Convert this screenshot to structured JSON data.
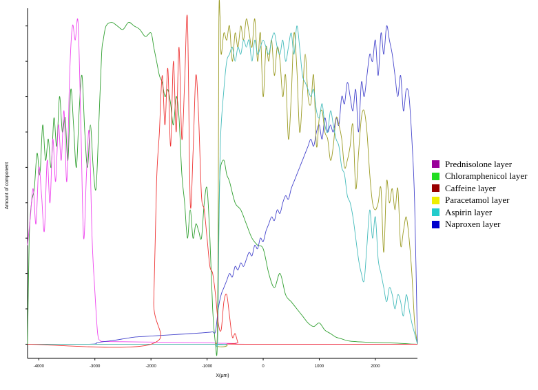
{
  "chart_data": {
    "type": "line",
    "title": "",
    "xlabel": "X(µm)",
    "ylabel": "Amount of component",
    "xlim": [
      -4200,
      2750
    ],
    "ylim": [
      -0.04,
      0.95
    ],
    "x_ticks": [
      -4000,
      -3000,
      -2000,
      -1000,
      0,
      1000,
      2000
    ],
    "x_tick_labels": [
      "-4000",
      "-3000",
      "-2000",
      "-1000",
      "0",
      "1000",
      "2000"
    ],
    "y_ticks": [
      0,
      0.1,
      0.2,
      0.3,
      0.4,
      0.5,
      0.6,
      0.7,
      0.8,
      0.9
    ],
    "grid": false,
    "legend_position": "right",
    "series": [
      {
        "name": "Prednisolone layer",
        "color": "#ee44ee",
        "swatch": "#990099",
        "x": [
          -4200,
          -4150,
          -4100,
          -4050,
          -4000,
          -3950,
          -3900,
          -3850,
          -3800,
          -3750,
          -3700,
          -3650,
          -3600,
          -3550,
          -3500,
          -3450,
          -3400,
          -3350,
          -3300,
          -3250,
          -3200,
          -3150,
          -3100,
          -3050,
          -3000,
          -2950,
          -2900,
          -2850,
          -2500,
          -2000,
          -1500,
          -1000,
          -800,
          -500,
          -200,
          2750
        ],
        "values": [
          0.28,
          0.36,
          0.44,
          0.34,
          0.5,
          0.42,
          0.32,
          0.52,
          0.4,
          0.58,
          0.46,
          0.62,
          0.52,
          0.66,
          0.46,
          0.76,
          0.9,
          0.86,
          0.91,
          0.62,
          0.3,
          0.48,
          0.6,
          0.3,
          0.15,
          0.03,
          0.01,
          0.008,
          0.007,
          0.006,
          0.005,
          0.004,
          0.003,
          0.002,
          0.0,
          0.0
        ]
      },
      {
        "name": "Chloramphenicol layer",
        "color": "#2f9f2f",
        "swatch": "#22dd22",
        "x": [
          -4200,
          -4170,
          -4130,
          -4080,
          -4030,
          -3980,
          -3930,
          -3880,
          -3830,
          -3780,
          -3730,
          -3680,
          -3630,
          -3580,
          -3530,
          -3480,
          -3430,
          -3380,
          -3330,
          -3280,
          -3230,
          -3180,
          -3130,
          -3080,
          -3030,
          -2980,
          -2930,
          -2880,
          -2850,
          -2800,
          -2700,
          -2600,
          -2500,
          -2400,
          -2300,
          -2200,
          -2100,
          -2000,
          -1950,
          -1900,
          -1850,
          -1800,
          -1750,
          -1700,
          -1650,
          -1600,
          -1550,
          -1500,
          -1450,
          -1400,
          -1350,
          -1300,
          -1250,
          -1200,
          -1150,
          -1100,
          -1050,
          -1000,
          -950,
          -900,
          -850,
          -820,
          -800,
          -780,
          -760,
          -700,
          -650,
          -600,
          -500,
          -400,
          -300,
          -200,
          -100,
          0,
          100,
          200,
          300,
          400,
          500,
          600,
          700,
          800,
          900,
          1000,
          1100,
          1200,
          1300,
          1400,
          1500,
          1600,
          1800,
          2000,
          2200,
          2400,
          2600,
          2750
        ],
        "values": [
          0.0,
          0.3,
          0.4,
          0.44,
          0.54,
          0.48,
          0.62,
          0.52,
          0.58,
          0.5,
          0.64,
          0.56,
          0.7,
          0.6,
          0.64,
          0.52,
          0.72,
          0.62,
          0.5,
          0.66,
          0.76,
          0.6,
          0.5,
          0.62,
          0.5,
          0.44,
          0.62,
          0.82,
          0.86,
          0.9,
          0.91,
          0.9,
          0.89,
          0.91,
          0.9,
          0.89,
          0.87,
          0.88,
          0.84,
          0.8,
          0.76,
          0.74,
          0.7,
          0.72,
          0.68,
          0.62,
          0.7,
          0.64,
          0.48,
          0.4,
          0.3,
          0.38,
          0.3,
          0.34,
          0.32,
          0.3,
          0.4,
          0.44,
          0.3,
          0.1,
          0.0,
          -0.01,
          0.28,
          0.44,
          0.5,
          0.52,
          0.48,
          0.46,
          0.4,
          0.38,
          0.34,
          0.3,
          0.28,
          0.27,
          0.2,
          0.16,
          0.2,
          0.14,
          0.12,
          0.1,
          0.08,
          0.06,
          0.05,
          0.06,
          0.04,
          0.03,
          0.02,
          0.015,
          0.01,
          0.008,
          0.006,
          0.005,
          0.004,
          0.003,
          0.001,
          0.0
        ]
      },
      {
        "name": "Caffeine layer",
        "color": "#ee3333",
        "swatch": "#990000",
        "x": [
          -4200,
          -2000,
          -1950,
          -1900,
          -1850,
          -1800,
          -1750,
          -1700,
          -1650,
          -1600,
          -1550,
          -1500,
          -1450,
          -1400,
          -1350,
          -1300,
          -1250,
          -1200,
          -1150,
          -1100,
          -1050,
          -1000,
          -950,
          -900,
          -850,
          -800,
          -750,
          -700,
          -650,
          -600,
          -550,
          -500,
          -450,
          -400,
          2750
        ],
        "values": [
          0.0,
          0.0,
          0.12,
          0.46,
          0.6,
          0.76,
          0.62,
          0.78,
          0.56,
          0.8,
          0.6,
          0.84,
          0.58,
          0.74,
          0.92,
          0.4,
          0.54,
          0.76,
          0.64,
          0.42,
          0.38,
          0.3,
          0.22,
          0.2,
          0.14,
          0.06,
          0.04,
          0.12,
          0.14,
          0.08,
          0.02,
          0.03,
          0.005,
          0.0,
          0.0
        ]
      },
      {
        "name": "Paracetamol layer",
        "color": "#9a9a22",
        "swatch": "#eeee00",
        "x": [
          -4200,
          -900,
          -850,
          -810,
          -790,
          -770,
          -750,
          -700,
          -650,
          -600,
          -550,
          -500,
          -450,
          -400,
          -350,
          -300,
          -250,
          -200,
          -150,
          -100,
          -50,
          0,
          50,
          100,
          150,
          200,
          250,
          300,
          350,
          400,
          450,
          500,
          550,
          600,
          650,
          700,
          750,
          800,
          850,
          900,
          950,
          1000,
          1050,
          1100,
          1150,
          1200,
          1250,
          1300,
          1350,
          1400,
          1450,
          1500,
          1550,
          1600,
          1650,
          1700,
          1750,
          1800,
          1850,
          1900,
          1950,
          2000,
          2050,
          2100,
          2150,
          2200,
          2250,
          2300,
          2350,
          2400,
          2450,
          2500,
          2550,
          2600,
          2650,
          2700,
          2750
        ],
        "values": [
          0.0,
          0.0,
          0.0,
          0.1,
          0.9,
          0.93,
          0.82,
          0.88,
          0.86,
          0.9,
          0.8,
          0.88,
          0.84,
          0.9,
          0.86,
          0.92,
          0.88,
          0.84,
          0.92,
          0.8,
          0.88,
          0.7,
          0.84,
          0.8,
          0.86,
          0.76,
          0.84,
          0.8,
          0.7,
          0.76,
          0.58,
          0.7,
          0.88,
          0.78,
          0.6,
          0.7,
          0.82,
          0.7,
          0.68,
          0.76,
          0.56,
          0.64,
          0.66,
          0.6,
          0.58,
          0.52,
          0.56,
          0.64,
          0.62,
          0.58,
          0.5,
          0.52,
          0.56,
          0.62,
          0.44,
          0.54,
          0.64,
          0.66,
          0.6,
          0.48,
          0.4,
          0.38,
          0.4,
          0.44,
          0.26,
          0.46,
          0.4,
          0.44,
          0.38,
          0.44,
          0.28,
          0.32,
          0.36,
          0.3,
          0.2,
          0.06,
          0.0
        ]
      },
      {
        "name": "Aspirin layer",
        "color": "#44bbbb",
        "swatch": "#22cccc",
        "x": [
          -4200,
          -900,
          -850,
          -810,
          -790,
          -760,
          -700,
          -650,
          -600,
          -550,
          -500,
          -450,
          -400,
          -350,
          -300,
          -250,
          -200,
          -150,
          -100,
          -50,
          0,
          50,
          100,
          150,
          200,
          250,
          300,
          350,
          400,
          450,
          500,
          550,
          600,
          650,
          700,
          750,
          800,
          850,
          900,
          950,
          1000,
          1050,
          1100,
          1150,
          1200,
          1250,
          1300,
          1350,
          1400,
          1450,
          1500,
          1550,
          1600,
          1650,
          1700,
          1750,
          1800,
          1850,
          1900,
          1950,
          2000,
          2050,
          2100,
          2150,
          2200,
          2250,
          2300,
          2350,
          2400,
          2450,
          2500,
          2550,
          2600,
          2650,
          2700,
          2750
        ],
        "values": [
          0.0,
          0.0,
          0.0,
          0.02,
          0.3,
          0.58,
          0.72,
          0.8,
          0.82,
          0.84,
          0.8,
          0.84,
          0.82,
          0.86,
          0.84,
          0.86,
          0.8,
          0.86,
          0.82,
          0.84,
          0.86,
          0.84,
          0.82,
          0.86,
          0.88,
          0.84,
          0.82,
          0.86,
          0.8,
          0.84,
          0.88,
          0.82,
          0.9,
          0.84,
          0.76,
          0.74,
          0.72,
          0.7,
          0.72,
          0.66,
          0.64,
          0.68,
          0.62,
          0.6,
          0.66,
          0.62,
          0.58,
          0.56,
          0.5,
          0.48,
          0.42,
          0.4,
          0.36,
          0.3,
          0.24,
          0.2,
          0.18,
          0.28,
          0.38,
          0.3,
          0.36,
          0.24,
          0.2,
          0.16,
          0.12,
          0.16,
          0.14,
          0.1,
          0.14,
          0.12,
          0.08,
          0.14,
          0.1,
          0.06,
          0.03,
          0.0
        ]
      },
      {
        "name": "Naproxen layer",
        "color": "#4444cc",
        "swatch": "#0000cc",
        "x": [
          -4200,
          -3100,
          -2950,
          -2700,
          -2500,
          -2300,
          -2100,
          -1900,
          -1700,
          -1500,
          -1300,
          -1100,
          -950,
          -900,
          -850,
          -800,
          -750,
          -700,
          -650,
          -600,
          -550,
          -500,
          -450,
          -400,
          -350,
          -300,
          -250,
          -200,
          -150,
          -100,
          -50,
          0,
          50,
          100,
          150,
          200,
          250,
          300,
          350,
          400,
          450,
          500,
          550,
          600,
          650,
          700,
          750,
          800,
          850,
          900,
          950,
          1000,
          1050,
          1100,
          1150,
          1200,
          1250,
          1300,
          1350,
          1400,
          1450,
          1500,
          1550,
          1600,
          1650,
          1700,
          1750,
          1800,
          1850,
          1900,
          1950,
          2000,
          2050,
          2100,
          2150,
          2200,
          2250,
          2300,
          2350,
          2400,
          2450,
          2500,
          2550,
          2600,
          2650,
          2700,
          2750
        ],
        "values": [
          0.0,
          0.0,
          0.005,
          0.01,
          0.015,
          0.02,
          0.022,
          0.024,
          0.026,
          0.028,
          0.03,
          0.032,
          0.034,
          0.035,
          0.036,
          0.1,
          0.14,
          0.16,
          0.18,
          0.2,
          0.19,
          0.22,
          0.21,
          0.23,
          0.22,
          0.24,
          0.26,
          0.25,
          0.28,
          0.27,
          0.3,
          0.29,
          0.32,
          0.34,
          0.36,
          0.35,
          0.38,
          0.37,
          0.4,
          0.42,
          0.41,
          0.44,
          0.46,
          0.48,
          0.5,
          0.52,
          0.54,
          0.56,
          0.58,
          0.56,
          0.6,
          0.62,
          0.58,
          0.64,
          0.6,
          0.62,
          0.6,
          0.64,
          0.62,
          0.7,
          0.68,
          0.74,
          0.7,
          0.66,
          0.72,
          0.6,
          0.74,
          0.7,
          0.76,
          0.82,
          0.8,
          0.86,
          0.76,
          0.88,
          0.82,
          0.9,
          0.86,
          0.82,
          0.76,
          0.7,
          0.76,
          0.66,
          0.72,
          0.7,
          0.58,
          0.4,
          0.0
        ]
      }
    ]
  }
}
